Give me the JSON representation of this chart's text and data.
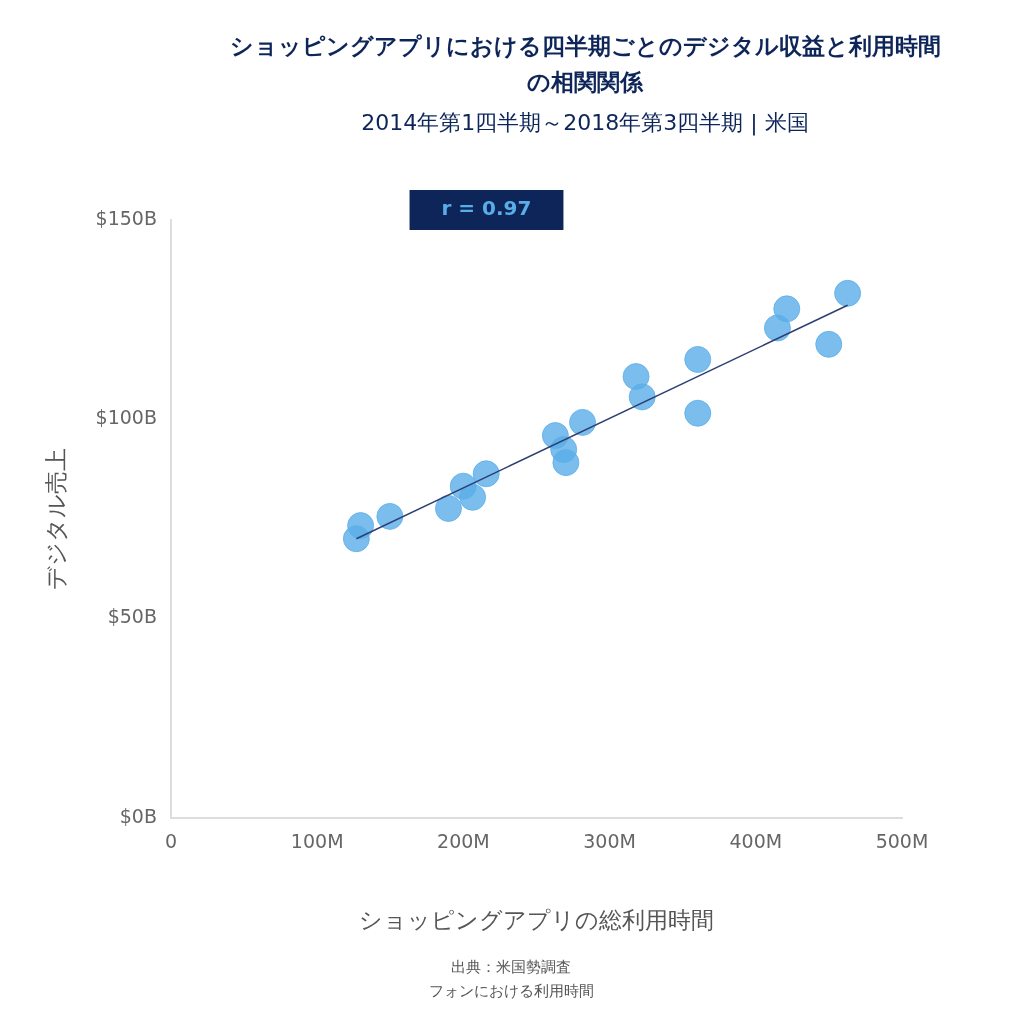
{
  "chart_data": {
    "type": "scatter",
    "title": "ショッピングアプリにおける四半期ごとのデジタル収益と利用時間の相関関係",
    "subtitle": "2014年第1四半期～2018年第3四半期 | 米国",
    "xlabel": "ショッピングアプリの総利用時間",
    "ylabel": "デジタル売上",
    "annotations": [
      "r = 0.97",
      "出典：米国勢調査",
      "フォンにおける利用時間"
    ],
    "series": [
      {
        "type": "scatter",
        "marker": "circle",
        "color": "#5aaee8",
        "x": [
          126.8,
          129.7,
          149.7,
          189.8,
          199.9,
          206.3,
          215.6,
          262.9,
          268.6,
          270.1,
          281.5,
          318.1,
          322.3,
          360.3,
          360.3,
          414.8,
          421.2,
          449.9,
          462.8
        ],
        "values": [
          70.0,
          73.3,
          75.6,
          77.6,
          83.2,
          80.4,
          86.3,
          95.9,
          92.4,
          89.1,
          99.2,
          110.7,
          105.6,
          115.0,
          101.5,
          122.9,
          127.7,
          118.8,
          131.6
        ]
      },
      {
        "type": "line",
        "marker": "none",
        "color": "#2d3e73",
        "x": [
          126.8,
          462.8
        ],
        "values": [
          70.0,
          128.6
        ]
      }
    ],
    "xlim": [
      0,
      500
    ],
    "xticks": [
      {
        "value": 0,
        "label": "0"
      },
      {
        "value": 100,
        "label": "100M"
      },
      {
        "value": 200,
        "label": "200M"
      },
      {
        "value": 300,
        "label": "300M"
      },
      {
        "value": 400,
        "label": "400M"
      },
      {
        "value": 500,
        "label": "500M"
      }
    ],
    "ylim": [
      0,
      150
    ],
    "yticks": [
      {
        "value": 0,
        "label": "$0B"
      },
      {
        "value": 50,
        "label": "$50B"
      },
      {
        "value": 100,
        "label": "$100B"
      },
      {
        "value": 150,
        "label": "$150B"
      }
    ],
    "grid": false,
    "legend": false
  }
}
